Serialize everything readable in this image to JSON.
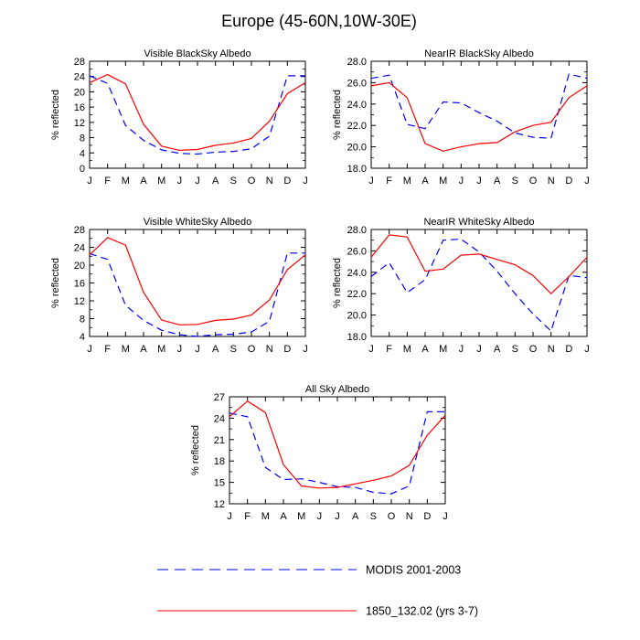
{
  "figure_title": "Europe (45-60N,10W-30E)",
  "legend": {
    "modis": "MODIS 2001-2003",
    "model": "1850_132.02 (yrs 3-7)"
  },
  "colors": {
    "modis": "#0000ff",
    "model": "#ff0000"
  },
  "chart_data": [
    {
      "type": "line",
      "title": "Visible BlackSky Albedo",
      "ylabel": "% reflected",
      "categories": [
        "J",
        "F",
        "M",
        "A",
        "M",
        "J",
        "J",
        "A",
        "S",
        "O",
        "N",
        "D",
        "J"
      ],
      "ylim": [
        0,
        28
      ],
      "yticks": [
        0,
        4,
        8,
        12,
        16,
        20,
        24,
        28
      ],
      "ytick_labels": [
        "0",
        "4",
        "8",
        "12",
        "16",
        "20",
        "24",
        "28"
      ],
      "series": [
        {
          "name": "MODIS 2001-2003",
          "values": [
            24.2,
            22.2,
            11.2,
            7.3,
            4.8,
            3.9,
            3.7,
            4.2,
            4.4,
            5.1,
            8.4,
            24.2,
            24.2
          ]
        },
        {
          "name": "1850_132.02 (yrs 3-7)",
          "values": [
            22.4,
            24.5,
            22.1,
            11.5,
            5.8,
            4.7,
            4.9,
            6.0,
            6.6,
            7.8,
            12.3,
            19.5,
            22.4
          ]
        }
      ]
    },
    {
      "type": "line",
      "title": "NearIR BlackSky Albedo",
      "ylabel": "% reflected",
      "categories": [
        "J",
        "F",
        "M",
        "A",
        "M",
        "J",
        "J",
        "A",
        "S",
        "O",
        "N",
        "D",
        "J"
      ],
      "ylim": [
        18,
        28
      ],
      "yticks": [
        18,
        20,
        22,
        24,
        26,
        28
      ],
      "ytick_labels": [
        "18.0",
        "20.0",
        "22.0",
        "24.0",
        "26.0",
        "28.0"
      ],
      "series": [
        {
          "name": "MODIS 2001-2003",
          "values": [
            26.4,
            26.7,
            22.1,
            21.7,
            24.2,
            24.1,
            23.2,
            22.4,
            21.3,
            20.9,
            20.8,
            26.8,
            26.4
          ]
        },
        {
          "name": "1850_132.02 (yrs 3-7)",
          "values": [
            25.7,
            26.0,
            24.6,
            20.3,
            19.6,
            20.0,
            20.3,
            20.4,
            21.4,
            22.0,
            22.3,
            24.6,
            25.7
          ]
        }
      ]
    },
    {
      "type": "line",
      "title": "Visible WhiteSky Albedo",
      "ylabel": "% reflected",
      "categories": [
        "J",
        "F",
        "M",
        "A",
        "M",
        "J",
        "J",
        "A",
        "S",
        "O",
        "N",
        "D",
        "J"
      ],
      "ylim": [
        4,
        28
      ],
      "yticks": [
        4,
        8,
        12,
        16,
        20,
        24,
        28
      ],
      "ytick_labels": [
        "4",
        "8",
        "12",
        "16",
        "20",
        "24",
        "28"
      ],
      "series": [
        {
          "name": "MODIS 2001-2003",
          "values": [
            22.6,
            21.3,
            11.0,
            7.6,
            5.4,
            4.4,
            4.0,
            4.4,
            4.5,
            5.0,
            7.4,
            22.7,
            22.7
          ]
        },
        {
          "name": "1850_132.02 (yrs 3-7)",
          "values": [
            22.3,
            26.2,
            24.5,
            13.9,
            7.7,
            6.6,
            6.7,
            7.6,
            7.9,
            8.8,
            12.2,
            19.0,
            22.3
          ]
        }
      ]
    },
    {
      "type": "line",
      "title": "NearIR WhiteSky Albedo",
      "ylabel": "% reflected",
      "categories": [
        "J",
        "F",
        "M",
        "A",
        "M",
        "J",
        "J",
        "A",
        "S",
        "O",
        "N",
        "D",
        "J"
      ],
      "ylim": [
        18,
        28
      ],
      "yticks": [
        18,
        20,
        22,
        24,
        26,
        28
      ],
      "ytick_labels": [
        "18.0",
        "20.0",
        "22.0",
        "24.0",
        "26.0",
        "28.0"
      ],
      "series": [
        {
          "name": "MODIS 2001-2003",
          "values": [
            23.6,
            24.9,
            22.1,
            23.3,
            27.0,
            27.1,
            25.9,
            24.1,
            22.0,
            20.1,
            18.5,
            23.7,
            23.5
          ]
        },
        {
          "name": "1850_132.02 (yrs 3-7)",
          "values": [
            25.4,
            27.5,
            27.3,
            24.1,
            24.3,
            25.6,
            25.7,
            25.2,
            24.7,
            23.7,
            22.0,
            23.6,
            25.4
          ]
        }
      ]
    },
    {
      "type": "line",
      "title": "All Sky Albedo",
      "ylabel": "% reflected",
      "categories": [
        "J",
        "F",
        "M",
        "A",
        "M",
        "J",
        "J",
        "A",
        "S",
        "O",
        "N",
        "D",
        "J"
      ],
      "ylim": [
        12,
        27
      ],
      "yticks": [
        12,
        15,
        18,
        21,
        24,
        27
      ],
      "ytick_labels": [
        "12",
        "15",
        "18",
        "21",
        "24",
        "27"
      ],
      "series": [
        {
          "name": "MODIS 2001-2003",
          "values": [
            24.7,
            24.2,
            17.1,
            15.4,
            15.5,
            15.0,
            14.4,
            14.3,
            13.6,
            13.4,
            14.5,
            24.9,
            24.9
          ]
        },
        {
          "name": "1850_132.02 (yrs 3-7)",
          "values": [
            24.2,
            26.4,
            24.8,
            17.5,
            14.5,
            14.2,
            14.3,
            14.8,
            15.3,
            15.9,
            17.4,
            21.6,
            24.4
          ]
        }
      ]
    }
  ]
}
